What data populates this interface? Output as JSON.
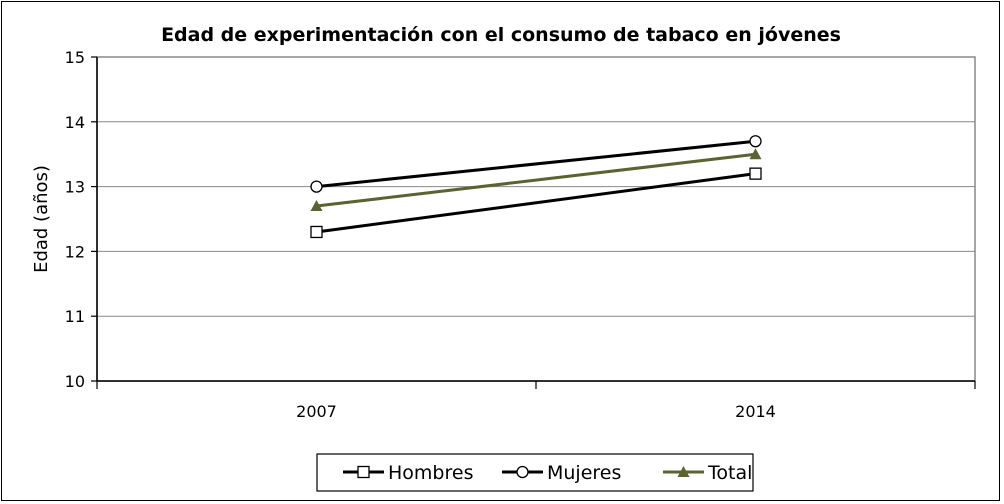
{
  "chart_data": {
    "type": "line",
    "title": "Edad de experimentación con el consumo de tabaco en jóvenes",
    "xlabel": "",
    "ylabel": "Edad (años)",
    "categories": [
      "2007",
      "2014"
    ],
    "ylim": [
      10,
      15
    ],
    "yticks": [
      "10",
      "11",
      "12",
      "13",
      "14",
      "15"
    ],
    "grid": true,
    "legend_position": "bottom",
    "series": [
      {
        "name": "Hombres",
        "values": [
          12.3,
          13.2
        ],
        "color": "#000000",
        "marker": "square"
      },
      {
        "name": "Mujeres",
        "values": [
          13.0,
          13.7
        ],
        "color": "#000000",
        "marker": "circle"
      },
      {
        "name": "Total",
        "values": [
          12.7,
          13.5
        ],
        "color": "#5a6332",
        "marker": "triangle"
      }
    ]
  }
}
